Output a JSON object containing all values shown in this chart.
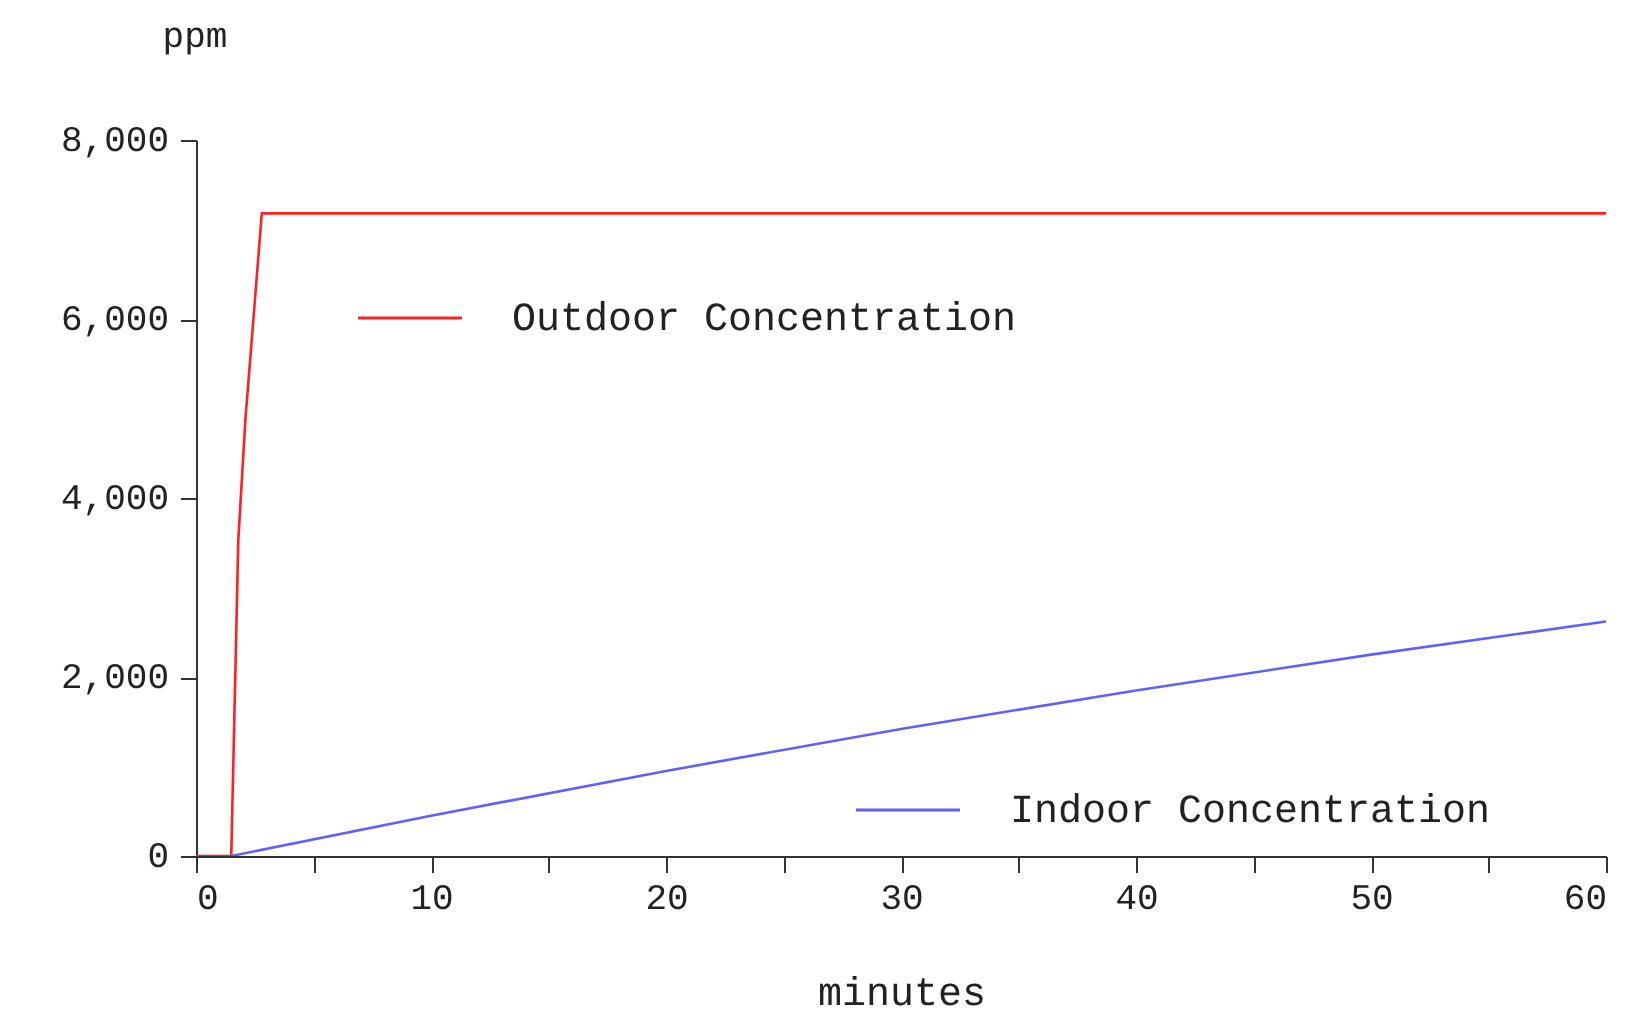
{
  "chart_data": {
    "type": "line",
    "xlabel": "minutes",
    "ylabel": "ppm",
    "xlim": [
      0,
      60
    ],
    "ylim": [
      0,
      8000
    ],
    "xticks": [
      0,
      {
        "value": 5,
        "label": null
      },
      10,
      {
        "value": 15,
        "label": null
      },
      20,
      {
        "value": 25,
        "label": null
      },
      30,
      {
        "value": 35,
        "label": null
      },
      40,
      {
        "value": 45,
        "label": null
      },
      50,
      {
        "value": 55,
        "label": null
      },
      60
    ],
    "yticks": [
      0,
      {
        "value": 2000,
        "label": "2,000"
      },
      {
        "value": 4000,
        "label": "4,000"
      },
      {
        "value": 6000,
        "label": "6,000"
      },
      {
        "value": 8000,
        "label": "8,000"
      }
    ],
    "grid": false,
    "legend": "bottom right",
    "series": [
      {
        "name": "Outdoor Concentration",
        "color": "#ff2020",
        "x": [
          0,
          1.5,
          1.8,
          2.1,
          2.8,
          60
        ],
        "values": [
          0,
          0,
          3530,
          4870,
          7180,
          7180
        ]
      },
      {
        "name": "Indoor Concentration",
        "color": "#6060ff",
        "x": [
          1.5,
          10,
          20,
          30,
          40,
          50,
          60
        ],
        "values": [
          0,
          450,
          950,
          1420,
          1850,
          2250,
          2620
        ]
      }
    ]
  }
}
